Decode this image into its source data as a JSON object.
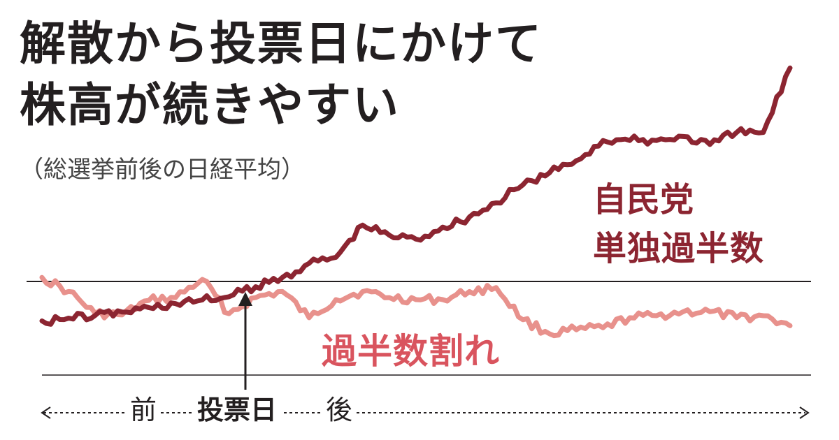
{
  "title_line1": "解散から投票日にかけて",
  "title_line2": "株高が続きやすい",
  "subtitle": "（総選挙前後の日経平均）",
  "axis": {
    "before_label": "前",
    "vote_day_label": "投票日",
    "after_label": "後"
  },
  "colors": {
    "ldp_majority": "#8c2531",
    "below_majority": "#e8918c",
    "below_majority_label": "#d9545e",
    "axis": "#231f20"
  },
  "chart_data": {
    "type": "line",
    "title": "解散から投票日にかけて株高が続きやすい",
    "subtitle": "（総選挙前後の日経平均）",
    "x_axis": {
      "left": "前",
      "center": "投票日",
      "right": "後"
    },
    "series": [
      {
        "name": "自民党単独過半数",
        "color": "#8c2531",
        "x": [
          0,
          10,
          20,
          30,
          40,
          50,
          60,
          70,
          80,
          90,
          100,
          110,
          120,
          130,
          140,
          150,
          160,
          170,
          180,
          190,
          200,
          210,
          220,
          230,
          240,
          250,
          260,
          270,
          280
        ],
        "y": [
          0.98,
          0.91,
          0.84,
          0.76,
          0.65,
          0.55,
          0.46,
          0.38,
          0.13,
          -0.1,
          -0.45,
          -0.6,
          -1.4,
          -1.15,
          -1.05,
          -1.35,
          -1.6,
          -1.95,
          -2.4,
          -2.7,
          -3.0,
          -3.5,
          -3.5,
          -3.5,
          -3.6,
          -3.4,
          -3.7,
          -3.7,
          -5.3
        ]
      },
      {
        "name": "過半数割れ",
        "color": "#e8918c",
        "x": [
          0,
          10,
          20,
          30,
          40,
          50,
          60,
          70,
          80,
          90,
          100,
          110,
          120,
          130,
          140,
          150,
          160,
          170,
          180,
          190,
          200,
          210,
          220,
          230,
          240,
          250,
          260,
          270,
          280
        ],
        "y": [
          -0.1,
          0.25,
          0.8,
          0.83,
          0.47,
          0.4,
          -0.05,
          0.8,
          0.4,
          0.25,
          0.9,
          0.45,
          0.25,
          0.4,
          0.45,
          0.45,
          0.25,
          0.15,
          0.95,
          1.3,
          1.2,
          1.15,
          0.9,
          0.85,
          0.75,
          0.75,
          0.9,
          0.85,
          1.1
        ]
      }
    ],
    "reference_line": 0,
    "ylim": [
      1.5,
      -5.8
    ],
    "xlim": [
      0,
      280
    ],
    "vote_day_x": 70,
    "grid": false,
    "legend": "inline labels"
  },
  "series_labels": {
    "ldp_line1": "自民党",
    "ldp_line2": "単独過半数",
    "minority": "過半数割れ"
  }
}
